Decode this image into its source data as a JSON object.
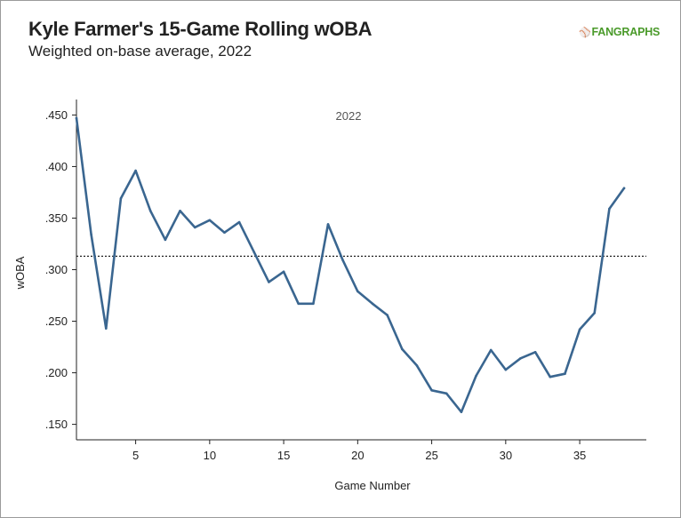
{
  "header": {
    "title": "Kyle Farmer's 15-Game Rolling wOBA",
    "subtitle": "Weighted on-base average, 2022",
    "logo_text": "FANGRAPHS",
    "logo_icon": "fangraphs-logo-icon"
  },
  "colors": {
    "line": "#3a6690",
    "logo": "#4a9a2a",
    "text": "#222222"
  },
  "chart_data": {
    "type": "line",
    "title": "Kyle Farmer's 15-Game Rolling wOBA",
    "subtitle": "Weighted on-base average, 2022",
    "annotation": "2022",
    "xlabel": "Game Number",
    "ylabel": "wOBA",
    "xlim": [
      1,
      39.5
    ],
    "ylim": [
      0.135,
      0.465
    ],
    "xticks": [
      5,
      10,
      15,
      20,
      25,
      30,
      35
    ],
    "xtick_labels": [
      "5",
      "10",
      "15",
      "20",
      "25",
      "30",
      "35"
    ],
    "yticks": [
      0.15,
      0.2,
      0.25,
      0.3,
      0.35,
      0.4,
      0.45
    ],
    "ytick_labels": [
      ".150",
      ".200",
      ".250",
      ".300",
      ".350",
      ".400",
      ".450"
    ],
    "reference_line": 0.313,
    "grid": false,
    "series": [
      {
        "x": [
          1,
          2,
          3,
          4,
          5,
          6,
          7,
          8,
          9,
          10,
          11,
          12,
          13,
          14,
          15,
          16,
          17,
          18,
          19,
          20,
          21,
          22,
          23,
          24,
          25,
          26,
          27,
          28,
          29,
          30,
          31,
          32,
          33,
          34,
          35,
          36,
          37,
          38
        ],
        "values": [
          0.447,
          0.334,
          0.243,
          0.369,
          0.396,
          0.357,
          0.329,
          0.357,
          0.341,
          0.348,
          0.336,
          0.346,
          0.317,
          0.288,
          0.298,
          0.267,
          0.267,
          0.344,
          0.309,
          0.279,
          0.267,
          0.256,
          0.223,
          0.207,
          0.183,
          0.18,
          0.162,
          0.197,
          0.222,
          0.203,
          0.214,
          0.22,
          0.196,
          0.199,
          0.242,
          0.258,
          0.359,
          0.379
        ]
      }
    ]
  }
}
